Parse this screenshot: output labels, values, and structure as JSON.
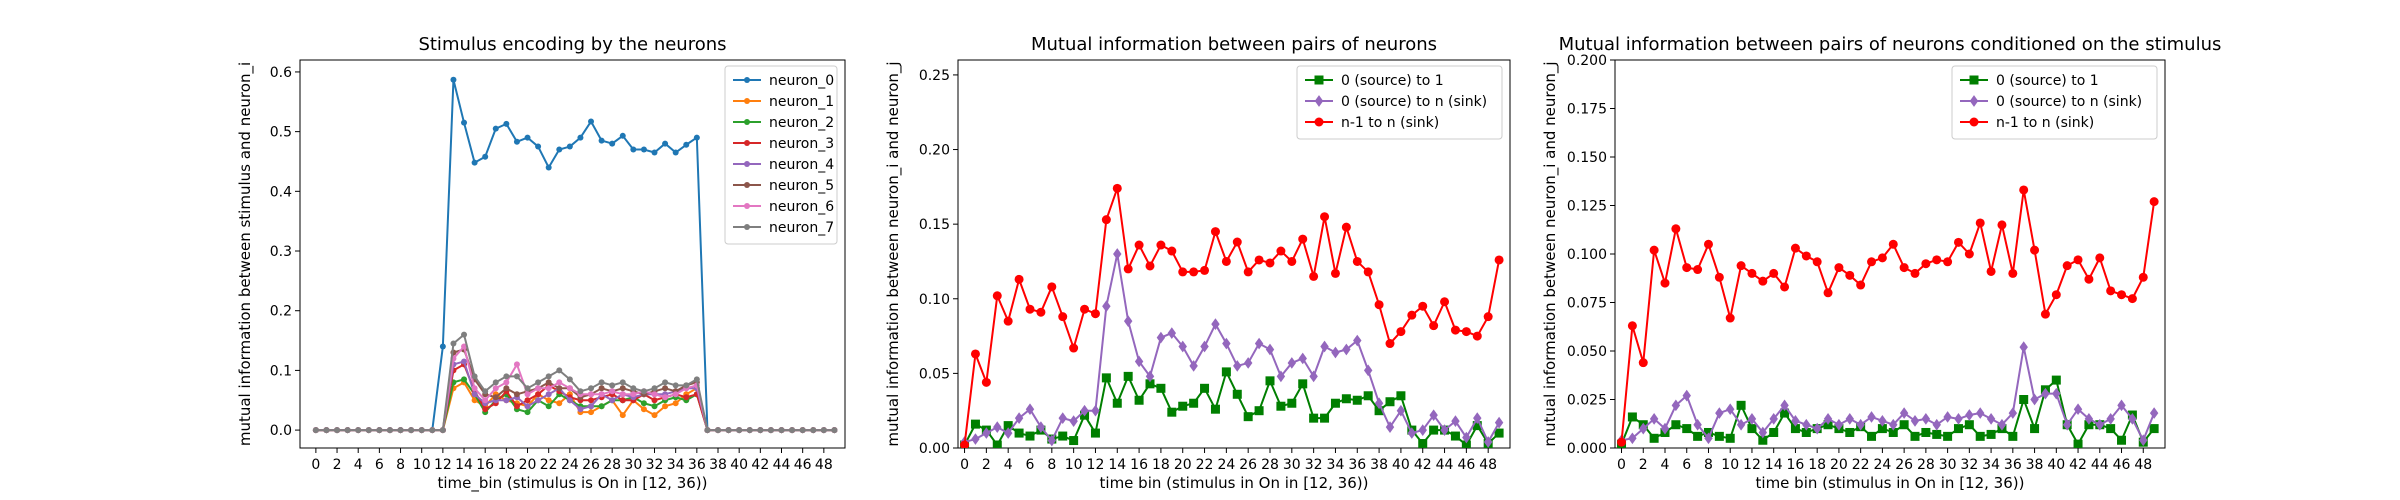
{
  "chart_data": [
    {
      "type": "line",
      "title": "Stimulus encoding by the neurons",
      "xlabel": "time_bin (stimulus is On in [12, 36))",
      "ylabel": "mutual information between stimulus and neuron_i",
      "xlim": [
        -1.5,
        50
      ],
      "ylim": [
        -0.03,
        0.62
      ],
      "xticks": [
        0,
        2,
        4,
        6,
        8,
        10,
        12,
        14,
        16,
        18,
        20,
        22,
        24,
        26,
        28,
        30,
        32,
        34,
        36,
        38,
        40,
        42,
        44,
        46,
        48
      ],
      "yticks": [
        0.0,
        0.1,
        0.2,
        0.3,
        0.4,
        0.5,
        0.6
      ],
      "ytick_labels": [
        "0.0",
        "0.1",
        "0.2",
        "0.3",
        "0.4",
        "0.5",
        "0.6"
      ],
      "legend": "top-right",
      "marker_size": 3,
      "x": [
        0,
        1,
        2,
        3,
        4,
        5,
        6,
        7,
        8,
        9,
        10,
        11,
        12,
        13,
        14,
        15,
        16,
        17,
        18,
        19,
        20,
        21,
        22,
        23,
        24,
        25,
        26,
        27,
        28,
        29,
        30,
        31,
        32,
        33,
        34,
        35,
        36,
        37,
        38,
        39,
        40,
        41,
        42,
        43,
        44,
        45,
        46,
        47,
        48,
        49
      ],
      "series": [
        {
          "name": "neuron_0",
          "color": "#1f77b4",
          "marker": "circle",
          "values": [
            0,
            0,
            0,
            0,
            0,
            0,
            0,
            0,
            0,
            0,
            0,
            0,
            0.14,
            0.587,
            0.515,
            0.448,
            0.458,
            0.505,
            0.513,
            0.483,
            0.49,
            0.475,
            0.44,
            0.47,
            0.475,
            0.49,
            0.517,
            0.485,
            0.48,
            0.493,
            0.47,
            0.47,
            0.465,
            0.48,
            0.465,
            0.478,
            0.49,
            0,
            0,
            0,
            0,
            0,
            0,
            0,
            0,
            0,
            0,
            0,
            0,
            0
          ]
        },
        {
          "name": "neuron_1",
          "color": "#ff7f0e",
          "marker": "circle",
          "values": [
            0,
            0,
            0,
            0,
            0,
            0,
            0,
            0,
            0,
            0,
            0,
            0,
            0,
            0.07,
            0.08,
            0.05,
            0.04,
            0.06,
            0.05,
            0.045,
            0.04,
            0.06,
            0.05,
            0.045,
            0.06,
            0.03,
            0.03,
            0.04,
            0.05,
            0.025,
            0.05,
            0.035,
            0.025,
            0.04,
            0.045,
            0.06,
            0.07,
            0,
            0,
            0,
            0,
            0,
            0,
            0,
            0,
            0,
            0,
            0,
            0,
            0
          ]
        },
        {
          "name": "neuron_2",
          "color": "#2ca02c",
          "marker": "circle",
          "values": [
            0,
            0,
            0,
            0,
            0,
            0,
            0,
            0,
            0,
            0,
            0,
            0,
            0,
            0.08,
            0.085,
            0.06,
            0.03,
            0.05,
            0.06,
            0.035,
            0.03,
            0.05,
            0.04,
            0.06,
            0.05,
            0.04,
            0.04,
            0.04,
            0.05,
            0.05,
            0.055,
            0.045,
            0.04,
            0.05,
            0.055,
            0.05,
            0.06,
            0,
            0,
            0,
            0,
            0,
            0,
            0,
            0,
            0,
            0,
            0,
            0,
            0
          ]
        },
        {
          "name": "neuron_3",
          "color": "#d62728",
          "marker": "circle",
          "values": [
            0,
            0,
            0,
            0,
            0,
            0,
            0,
            0,
            0,
            0,
            0,
            0,
            0,
            0.1,
            0.11,
            0.065,
            0.035,
            0.045,
            0.065,
            0.04,
            0.05,
            0.06,
            0.075,
            0.065,
            0.055,
            0.05,
            0.05,
            0.055,
            0.06,
            0.05,
            0.05,
            0.06,
            0.05,
            0.055,
            0.06,
            0.055,
            0.06,
            0,
            0,
            0,
            0,
            0,
            0,
            0,
            0,
            0,
            0,
            0,
            0,
            0
          ]
        },
        {
          "name": "neuron_4",
          "color": "#9467bd",
          "marker": "circle",
          "values": [
            0,
            0,
            0,
            0,
            0,
            0,
            0,
            0,
            0,
            0,
            0,
            0,
            0,
            0.11,
            0.115,
            0.06,
            0.045,
            0.05,
            0.05,
            0.055,
            0.04,
            0.05,
            0.06,
            0.07,
            0.05,
            0.035,
            0.04,
            0.06,
            0.05,
            0.06,
            0.055,
            0.06,
            0.06,
            0.06,
            0.065,
            0.07,
            0.07,
            0,
            0,
            0,
            0,
            0,
            0,
            0,
            0,
            0,
            0,
            0,
            0,
            0
          ]
        },
        {
          "name": "neuron_5",
          "color": "#8c564b",
          "marker": "circle",
          "values": [
            0,
            0,
            0,
            0,
            0,
            0,
            0,
            0,
            0,
            0,
            0,
            0,
            0,
            0.13,
            0.135,
            0.085,
            0.06,
            0.055,
            0.07,
            0.06,
            0.065,
            0.07,
            0.08,
            0.07,
            0.07,
            0.055,
            0.06,
            0.07,
            0.065,
            0.07,
            0.065,
            0.06,
            0.065,
            0.07,
            0.065,
            0.075,
            0.08,
            0,
            0,
            0,
            0,
            0,
            0,
            0,
            0,
            0,
            0,
            0,
            0,
            0
          ]
        },
        {
          "name": "neuron_6",
          "color": "#e377c2",
          "marker": "circle",
          "values": [
            0,
            0,
            0,
            0,
            0,
            0,
            0,
            0,
            0,
            0,
            0,
            0,
            0,
            0.12,
            0.14,
            0.07,
            0.05,
            0.07,
            0.08,
            0.11,
            0.06,
            0.07,
            0.07,
            0.08,
            0.07,
            0.06,
            0.06,
            0.06,
            0.065,
            0.06,
            0.06,
            0.065,
            0.06,
            0.055,
            0.06,
            0.07,
            0.075,
            0,
            0,
            0,
            0,
            0,
            0,
            0,
            0,
            0,
            0,
            0,
            0,
            0
          ]
        },
        {
          "name": "neuron_7",
          "color": "#7f7f7f",
          "marker": "circle",
          "values": [
            0,
            0,
            0,
            0,
            0,
            0,
            0,
            0,
            0,
            0,
            0,
            0,
            0,
            0.145,
            0.16,
            0.09,
            0.065,
            0.08,
            0.09,
            0.09,
            0.07,
            0.08,
            0.09,
            0.1,
            0.085,
            0.065,
            0.07,
            0.08,
            0.075,
            0.08,
            0.07,
            0.065,
            0.07,
            0.08,
            0.075,
            0.075,
            0.085,
            0,
            0,
            0,
            0,
            0,
            0,
            0,
            0,
            0,
            0,
            0,
            0,
            0
          ]
        }
      ]
    },
    {
      "type": "line",
      "title": "Mutual information between pairs of neurons",
      "xlabel": "time bin (stimulus in On in [12, 36))",
      "ylabel": "mutual information between neuron_i and neuron_j",
      "xlim": [
        -0.6,
        50
      ],
      "ylim": [
        0,
        0.26
      ],
      "xticks": [
        0,
        2,
        4,
        6,
        8,
        10,
        12,
        14,
        16,
        18,
        20,
        22,
        24,
        26,
        28,
        30,
        32,
        34,
        36,
        38,
        40,
        42,
        44,
        46,
        48
      ],
      "yticks": [
        0.0,
        0.05,
        0.1,
        0.15,
        0.2,
        0.25
      ],
      "ytick_labels": [
        "0.00",
        "0.05",
        "0.10",
        "0.15",
        "0.20",
        "0.25"
      ],
      "legend": "top-right",
      "marker_size": 4.5,
      "x": [
        0,
        1,
        2,
        3,
        4,
        5,
        6,
        7,
        8,
        9,
        10,
        11,
        12,
        13,
        14,
        15,
        16,
        17,
        18,
        19,
        20,
        21,
        22,
        23,
        24,
        25,
        26,
        27,
        28,
        29,
        30,
        31,
        32,
        33,
        34,
        35,
        36,
        37,
        38,
        39,
        40,
        41,
        42,
        43,
        44,
        45,
        46,
        47,
        48,
        49
      ],
      "series": [
        {
          "name": "0 (source) to 1",
          "color": "#007f00",
          "marker": "square",
          "values": [
            0.002,
            0.016,
            0.012,
            0.002,
            0.015,
            0.01,
            0.008,
            0.012,
            0.006,
            0.008,
            0.005,
            0.022,
            0.01,
            0.047,
            0.03,
            0.048,
            0.032,
            0.043,
            0.04,
            0.024,
            0.028,
            0.03,
            0.04,
            0.026,
            0.051,
            0.036,
            0.021,
            0.025,
            0.045,
            0.028,
            0.03,
            0.043,
            0.02,
            0.02,
            0.03,
            0.033,
            0.032,
            0.035,
            0.025,
            0.031,
            0.035,
            0.012,
            0.003,
            0.012,
            0.012,
            0.008,
            0.002,
            0.015,
            0.003,
            0.01
          ]
        },
        {
          "name": "0 (source) to n (sink)",
          "color": "#9467bd",
          "marker": "diamond",
          "values": [
            0.004,
            0.006,
            0.01,
            0.014,
            0.01,
            0.02,
            0.026,
            0.014,
            0.005,
            0.02,
            0.018,
            0.025,
            0.025,
            0.095,
            0.13,
            0.085,
            0.058,
            0.048,
            0.074,
            0.077,
            0.068,
            0.055,
            0.068,
            0.083,
            0.07,
            0.055,
            0.057,
            0.07,
            0.066,
            0.048,
            0.057,
            0.06,
            0.048,
            0.068,
            0.064,
            0.066,
            0.072,
            0.052,
            0.03,
            0.014,
            0.025,
            0.01,
            0.012,
            0.022,
            0.012,
            0.018,
            0.007,
            0.02,
            0.004,
            0.017
          ]
        },
        {
          "name": "n-1 to n (sink)",
          "color": "#ff0000",
          "marker": "circle",
          "values": [
            0.002,
            0.063,
            0.044,
            0.102,
            0.085,
            0.113,
            0.093,
            0.091,
            0.108,
            0.088,
            0.067,
            0.093,
            0.09,
            0.153,
            0.174,
            0.12,
            0.136,
            0.122,
            0.136,
            0.132,
            0.118,
            0.118,
            0.119,
            0.145,
            0.125,
            0.138,
            0.118,
            0.126,
            0.124,
            0.132,
            0.125,
            0.14,
            0.115,
            0.155,
            0.117,
            0.148,
            0.125,
            0.118,
            0.096,
            0.07,
            0.078,
            0.089,
            0.095,
            0.082,
            0.098,
            0.079,
            0.078,
            0.075,
            0.088,
            0.126
          ]
        }
      ]
    },
    {
      "type": "line",
      "title": "Mutual information between pairs of neurons conditioned on the stimulus",
      "xlabel": "time bin (stimulus in On in [12, 36))",
      "ylabel": "mutual information between neuron_i and neuron_j",
      "xlim": [
        -0.6,
        50
      ],
      "ylim": [
        0,
        0.2
      ],
      "xticks": [
        0,
        2,
        4,
        6,
        8,
        10,
        12,
        14,
        16,
        18,
        20,
        22,
        24,
        26,
        28,
        30,
        32,
        34,
        36,
        38,
        40,
        42,
        44,
        46,
        48
      ],
      "yticks": [
        0.0,
        0.025,
        0.05,
        0.075,
        0.1,
        0.125,
        0.15,
        0.175,
        0.2
      ],
      "ytick_labels": [
        "0.000",
        "0.025",
        "0.050",
        "0.075",
        "0.100",
        "0.125",
        "0.150",
        "0.175",
        "0.200"
      ],
      "legend": "top-right",
      "marker_size": 4.5,
      "x": [
        0,
        1,
        2,
        3,
        4,
        5,
        6,
        7,
        8,
        9,
        10,
        11,
        12,
        13,
        14,
        15,
        16,
        17,
        18,
        19,
        20,
        21,
        22,
        23,
        24,
        25,
        26,
        27,
        28,
        29,
        30,
        31,
        32,
        33,
        34,
        35,
        36,
        37,
        38,
        39,
        40,
        41,
        42,
        43,
        44,
        45,
        46,
        47,
        48,
        49
      ],
      "series": [
        {
          "name": "0 (source) to 1",
          "color": "#007f00",
          "marker": "square",
          "values": [
            0.002,
            0.016,
            0.012,
            0.005,
            0.008,
            0.012,
            0.01,
            0.006,
            0.008,
            0.006,
            0.005,
            0.022,
            0.01,
            0.004,
            0.008,
            0.018,
            0.01,
            0.008,
            0.01,
            0.012,
            0.01,
            0.008,
            0.011,
            0.006,
            0.01,
            0.008,
            0.012,
            0.006,
            0.008,
            0.007,
            0.006,
            0.01,
            0.012,
            0.006,
            0.007,
            0.01,
            0.006,
            0.025,
            0.01,
            0.03,
            0.035,
            0.012,
            0.002,
            0.012,
            0.012,
            0.01,
            0.004,
            0.017,
            0.003,
            0.01
          ]
        },
        {
          "name": "0 (source) to n (sink)",
          "color": "#9467bd",
          "marker": "diamond",
          "values": [
            0.004,
            0.005,
            0.01,
            0.015,
            0.01,
            0.022,
            0.027,
            0.012,
            0.005,
            0.018,
            0.02,
            0.012,
            0.015,
            0.008,
            0.015,
            0.022,
            0.014,
            0.012,
            0.01,
            0.015,
            0.012,
            0.015,
            0.012,
            0.016,
            0.014,
            0.012,
            0.018,
            0.014,
            0.015,
            0.012,
            0.016,
            0.015,
            0.017,
            0.018,
            0.015,
            0.012,
            0.018,
            0.052,
            0.025,
            0.028,
            0.028,
            0.012,
            0.02,
            0.015,
            0.012,
            0.015,
            0.022,
            0.015,
            0.004,
            0.018
          ]
        },
        {
          "name": "n-1 to n (sink)",
          "color": "#ff0000",
          "marker": "circle",
          "values": [
            0.003,
            0.063,
            0.044,
            0.102,
            0.085,
            0.113,
            0.093,
            0.092,
            0.105,
            0.088,
            0.067,
            0.094,
            0.09,
            0.086,
            0.09,
            0.083,
            0.103,
            0.099,
            0.096,
            0.08,
            0.093,
            0.089,
            0.084,
            0.096,
            0.098,
            0.105,
            0.093,
            0.09,
            0.095,
            0.097,
            0.096,
            0.106,
            0.1,
            0.116,
            0.091,
            0.115,
            0.09,
            0.133,
            0.102,
            0.069,
            0.079,
            0.094,
            0.097,
            0.087,
            0.098,
            0.081,
            0.079,
            0.077,
            0.088,
            0.127
          ]
        }
      ]
    }
  ]
}
